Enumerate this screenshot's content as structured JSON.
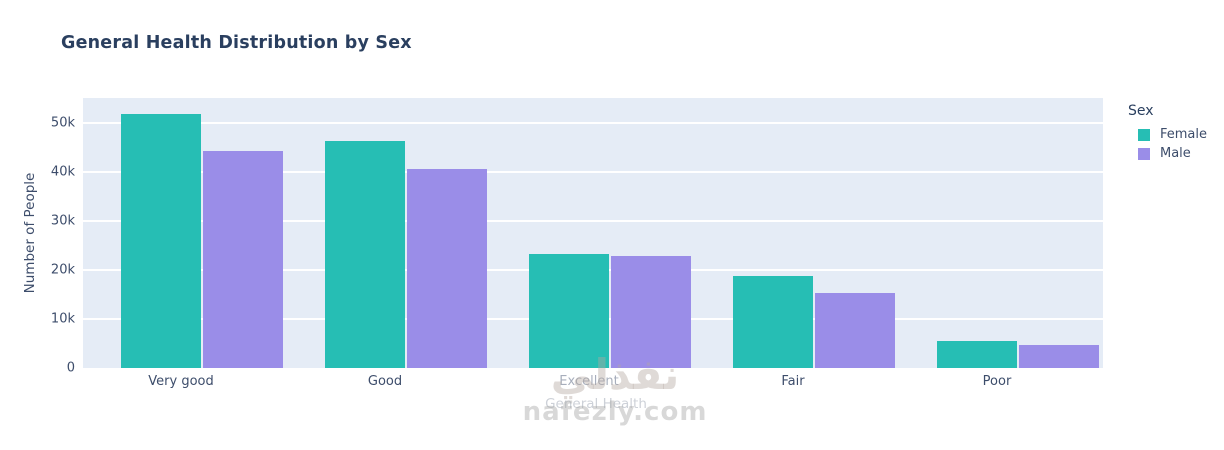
{
  "title": "General Health Distribution by Sex",
  "legend": {
    "title": "Sex",
    "items": [
      {
        "label": "Female",
        "color": "#26beb4"
      },
      {
        "label": "Male",
        "color": "#9a8de8"
      }
    ]
  },
  "watermark": {
    "arabic": "نفذلي",
    "domain": "nafezly.com"
  },
  "chart_data": {
    "type": "bar",
    "title": "General Health Distribution by Sex",
    "categories": [
      "Very good",
      "Good",
      "Excellent",
      "Fair",
      "Poor"
    ],
    "series": [
      {
        "name": "Female",
        "color": "#26beb4",
        "values": [
          51700,
          46300,
          23300,
          18700,
          5500
        ]
      },
      {
        "name": "Male",
        "color": "#9a8de8",
        "values": [
          44200,
          40600,
          22900,
          15300,
          4600
        ]
      }
    ],
    "xlabel": "General Health",
    "ylabel": "Number of People",
    "ylim": [
      0,
      55000
    ],
    "yticks": [
      {
        "label": "0",
        "value": 0
      },
      {
        "label": "10k",
        "value": 10000
      },
      {
        "label": "20k",
        "value": 20000
      },
      {
        "label": "30k",
        "value": 30000
      },
      {
        "label": "40k",
        "value": 40000
      },
      {
        "label": "50k",
        "value": 50000
      }
    ],
    "grid": true,
    "legend_position": "right",
    "plot_bg": "#e5ecf6"
  }
}
